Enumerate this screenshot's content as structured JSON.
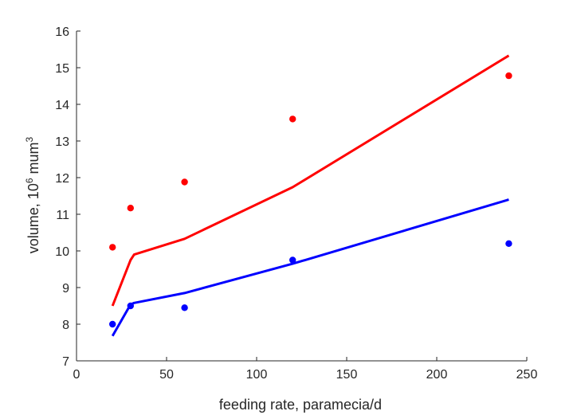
{
  "chart_data": {
    "type": "scatter",
    "xlabel": "feeding rate, paramecia/d",
    "ylabel": "volume, 10^6 mum^3",
    "ylabel_parts": {
      "main": "volume, 10",
      "exp1": "6",
      "unit": " mum",
      "exp2": "3"
    },
    "xlim": [
      0,
      250
    ],
    "ylim": [
      7,
      16
    ],
    "xticks": [
      0,
      50,
      100,
      150,
      200,
      250
    ],
    "yticks": [
      7,
      8,
      9,
      10,
      11,
      12,
      13,
      14,
      15,
      16
    ],
    "grid": false,
    "legend": "none",
    "series": [
      {
        "color": "#ff0000",
        "points": {
          "x": [
            20,
            30,
            60,
            120,
            240
          ],
          "y": [
            10.1,
            11.17,
            11.88,
            13.6,
            14.78
          ]
        },
        "fit": {
          "x": [
            20,
            30,
            32,
            60,
            120,
            240
          ],
          "y": [
            8.5,
            9.75,
            9.9,
            10.33,
            11.74,
            15.33
          ]
        }
      },
      {
        "color": "#0000ff",
        "points": {
          "x": [
            20,
            30,
            60,
            120,
            240
          ],
          "y": [
            8.0,
            8.5,
            8.45,
            9.75,
            10.2
          ]
        },
        "fit": {
          "x": [
            20,
            30,
            32,
            60,
            120,
            240
          ],
          "y": [
            7.68,
            8.54,
            8.58,
            8.85,
            9.65,
            11.4
          ]
        }
      }
    ]
  }
}
